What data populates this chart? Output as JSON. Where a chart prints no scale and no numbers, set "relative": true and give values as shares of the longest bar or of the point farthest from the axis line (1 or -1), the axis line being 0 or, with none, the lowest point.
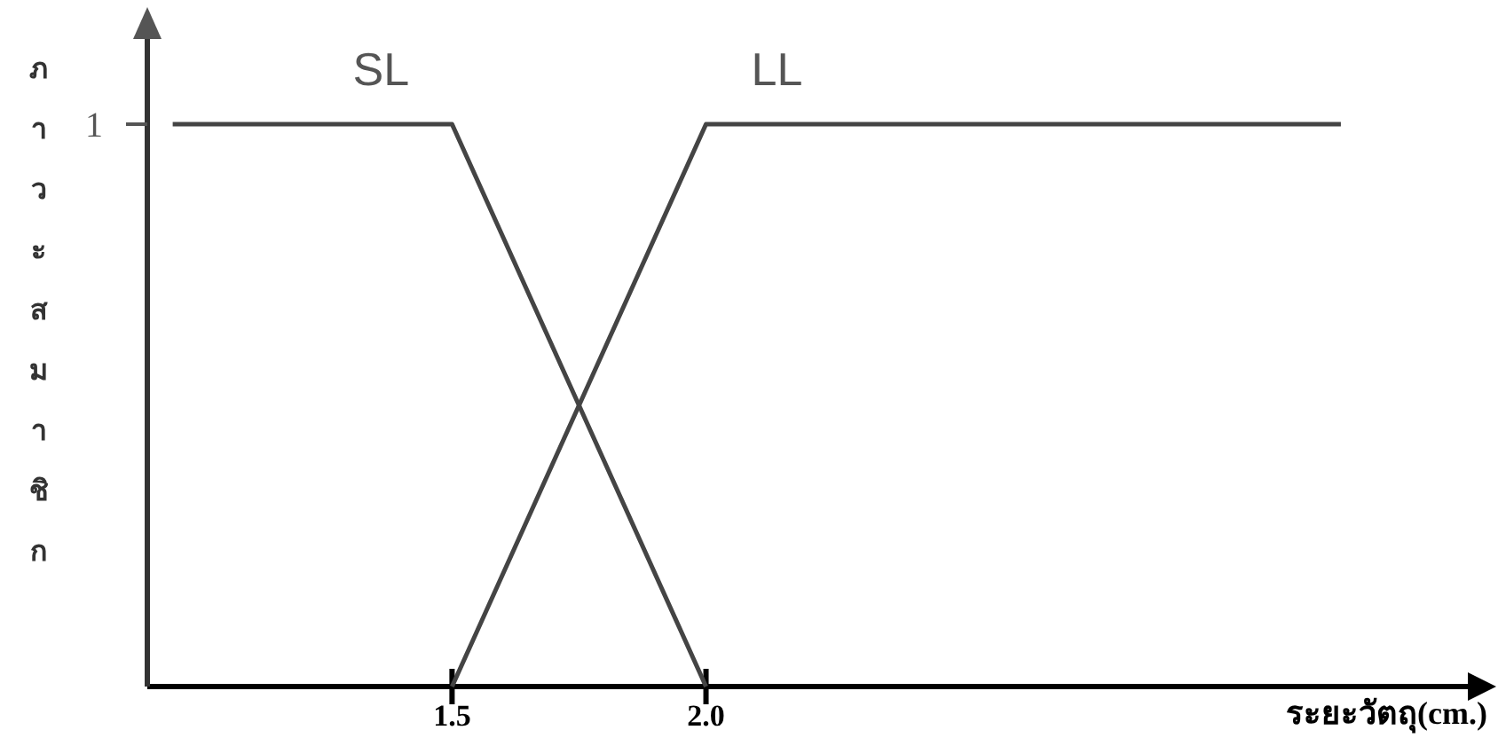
{
  "chart_data": {
    "type": "line",
    "xlabel": "ระยะวัตถุ(cm.)",
    "ylabel": "ภาวะสมาชิก",
    "xlim": [
      0.9,
      3.5
    ],
    "xticks": [
      1.5,
      {
        "value": 2,
        "label": "2.0"
      }
    ],
    "relative": true,
    "annotations": [
      "1"
    ],
    "series": [
      {
        "name": "SL",
        "color": "#444444",
        "x": [
          0.95,
          1.5,
          2.0
        ],
        "values": [
          1,
          1,
          0
        ]
      },
      {
        "name": "LL",
        "color": "#444444",
        "x": [
          1.5,
          2.0,
          3.25
        ],
        "values": [
          0,
          1,
          1
        ]
      }
    ],
    "marker": "none",
    "line_style": "solid",
    "legend": false
  }
}
